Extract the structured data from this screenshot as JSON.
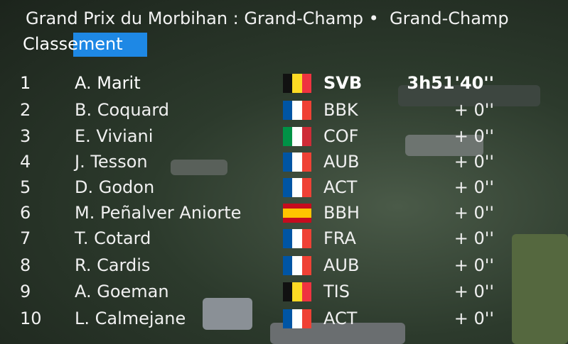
{
  "header": {
    "title": "Grand Prix du Morbihan : Grand-Champ •  Grand-Champ",
    "subtitle": "Classement"
  },
  "table": {
    "rows": [
      [
        "1",
        "A. Marit",
        "SVB",
        "3h51'40''"
      ],
      [
        "2",
        "B. Coquard",
        "BBK",
        "+ 0''"
      ],
      [
        "3",
        "E. Viviani",
        "COF",
        "+ 0''"
      ],
      [
        "4",
        "J. Tesson",
        "AUB",
        "+ 0''"
      ],
      [
        "5",
        "D. Godon",
        "ACT",
        "+ 0''"
      ],
      [
        "6",
        "M. Peñalver Aniorte",
        "BBH",
        "+ 0''"
      ],
      [
        "7",
        "T. Cotard",
        "FRA",
        "+ 0''"
      ],
      [
        "8",
        "R. Cardis",
        "AUB",
        "+ 0''"
      ],
      [
        "9",
        "A. Goeman",
        "TIS",
        "+ 0''"
      ],
      [
        "10",
        "L. Calmejane",
        "ACT",
        "+ 0''"
      ]
    ]
  }
}
